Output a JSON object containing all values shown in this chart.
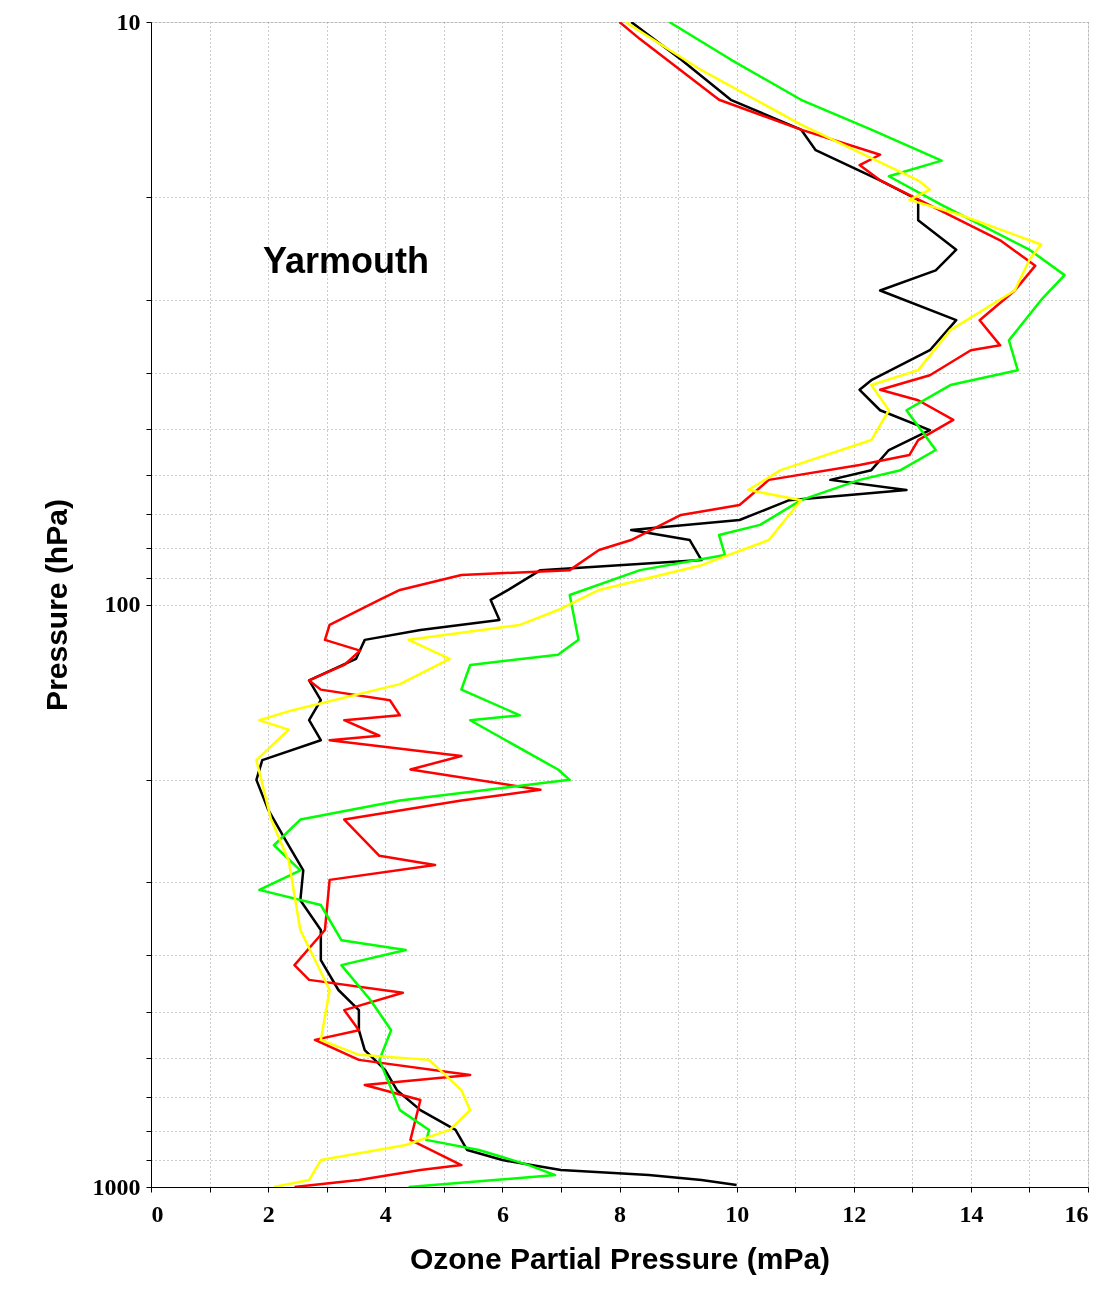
{
  "chart_data": {
    "type": "line",
    "xlabel": "Ozone Partial Pressure (mPa)",
    "ylabel": "Pressure (hPa)",
    "log": "y",
    "grid": true,
    "annotations": [
      "Yarmouth"
    ],
    "xlim": [
      0,
      16
    ],
    "xticks": [
      0,
      {
        "value": 1,
        "label": null
      },
      2,
      {
        "value": 3,
        "label": null
      },
      4,
      {
        "value": 5,
        "label": null
      },
      6,
      {
        "value": 7,
        "label": null
      },
      8,
      {
        "value": 9,
        "label": null
      },
      10,
      {
        "value": 11,
        "label": null
      },
      12,
      {
        "value": 13,
        "label": null
      },
      14,
      {
        "value": 15,
        "label": null
      },
      16
    ],
    "ylim": [
      1000,
      10
    ],
    "yticks": [
      10,
      {
        "value": 20,
        "label": null
      },
      {
        "value": 30,
        "label": null
      },
      {
        "value": 40,
        "label": null
      },
      {
        "value": 50,
        "label": null
      },
      {
        "value": 60,
        "label": null
      },
      {
        "value": 70,
        "label": null
      },
      {
        "value": 80,
        "label": null
      },
      {
        "value": 90,
        "label": null
      },
      100,
      {
        "value": 200,
        "label": null
      },
      {
        "value": 300,
        "label": null
      },
      {
        "value": 400,
        "label": null
      },
      {
        "value": 500,
        "label": null
      },
      {
        "value": 600,
        "label": null
      },
      {
        "value": 700,
        "label": null
      },
      {
        "value": 800,
        "label": null
      },
      {
        "value": 900,
        "label": null
      },
      1000
    ],
    "series": [
      {
        "color": "#000000",
        "x": [
          8.2,
          9.05,
          9.9,
          11.1,
          11.35,
          12.45,
          13.1,
          13.1,
          13.75,
          13.4,
          12.45,
          13.75,
          13.3,
          12.3,
          12.1,
          12.45,
          13.3,
          12.6,
          12.3,
          11.6,
          12.9,
          10.9,
          10.05,
          8.2,
          9.2,
          9.4,
          6.65,
          6.1,
          5.8,
          5.95,
          4.6,
          3.65,
          3.5,
          2.7,
          2.9,
          2.7,
          2.9,
          1.9,
          1.8,
          2.0,
          2.3,
          2.6,
          2.55,
          2.9,
          2.9,
          3.2,
          3.55,
          3.55,
          3.65,
          4.0,
          4.2,
          4.6,
          5.2,
          5.4,
          6.0,
          7.0,
          8.5,
          9.4,
          10.0
        ],
        "values": [
          10,
          11.6,
          13.6,
          15.3,
          16.6,
          18.7,
          20.2,
          21.9,
          24.6,
          26.7,
          28.9,
          32.5,
          36.6,
          41.2,
          42.8,
          46.4,
          50.2,
          54.3,
          58.8,
          61.1,
          63.6,
          66.2,
          71.6,
          74.5,
          77.5,
          83.9,
          87.3,
          94.4,
          98.2,
          106.3,
          110.6,
          115,
          124,
          135,
          146,
          158,
          171,
          185,
          200,
          225,
          254,
          286,
          322,
          362,
          408,
          459,
          497,
          538,
          582,
          630,
          682,
          738,
          798,
          864,
          899,
          935,
          954,
          973,
          992
        ]
      },
      {
        "color": "#ff0000",
        "x": [
          8.0,
          8.35,
          9.7,
          11.1,
          12.45,
          12.1,
          12.45,
          13.45,
          14.5,
          15.1,
          14.75,
          14.15,
          14.5,
          14.0,
          13.3,
          12.45,
          13.1,
          13.7,
          13.1,
          12.95,
          12.1,
          10.55,
          10.05,
          9.05,
          8.2,
          7.65,
          7.15,
          5.3,
          4.25,
          3.9,
          3.05,
          2.97,
          3.57,
          3.3,
          2.7,
          2.9,
          4.08,
          4.25,
          3.3,
          3.9,
          3.05,
          5.3,
          4.43,
          6.65,
          5.3,
          3.3,
          3.9,
          4.85,
          3.05,
          2.97,
          2.45,
          2.7,
          4.3,
          3.3,
          3.55,
          2.8,
          3.55,
          5.45,
          3.65,
          4.6,
          4.43,
          5.3,
          4.6,
          3.55,
          2.45
        ],
        "values": [
          10,
          10.7,
          13.6,
          15.3,
          16.9,
          17.6,
          18.7,
          21.0,
          23.7,
          26.2,
          28.9,
          32.5,
          35.9,
          36.6,
          40.4,
          42.8,
          44.6,
          48.2,
          52.2,
          55.4,
          57.6,
          61.1,
          67.5,
          70.2,
          77.5,
          80.6,
          87.3,
          89.0,
          94.4,
          98.2,
          108.4,
          115,
          120,
          127,
          135,
          140,
          146,
          155,
          158,
          168,
          171,
          182,
          192,
          208,
          217,
          234,
          270,
          280,
          297,
          362,
          416,
          441,
          464,
          497,
          538,
          559,
          605,
          642,
          668,
          709,
          830,
          917,
          935,
          973,
          1000
        ]
      },
      {
        "color": "#00ff00",
        "x": [
          8.85,
          9.9,
          11.1,
          12.3,
          13.5,
          12.6,
          13.5,
          15.0,
          15.6,
          15.2,
          14.65,
          14.8,
          13.65,
          12.9,
          13.4,
          12.8,
          12.1,
          11.1,
          10.4,
          9.7,
          9.8,
          8.35,
          7.15,
          7.3,
          6.95,
          5.45,
          5.3,
          6.3,
          5.45,
          6.95,
          7.15,
          4.25,
          2.55,
          2.1,
          2.55,
          1.85,
          2.9,
          3.25,
          4.35,
          3.25,
          3.75,
          4.1,
          3.9,
          4.25,
          4.75,
          4.7,
          5.6,
          6.45,
          6.9,
          4.4
        ],
        "values": [
          10,
          11.6,
          13.6,
          15.3,
          17.3,
          18.4,
          20.6,
          24.6,
          27.2,
          30.0,
          35.2,
          39.6,
          42.0,
          46.4,
          54.3,
          58.8,
          61.1,
          66.2,
          73.0,
          76.0,
          82.2,
          87.3,
          96.3,
          115,
          122,
          127,
          140,
          155,
          158,
          192,
          200,
          217,
          234,
          259,
          286,
          309,
          328,
          377,
          392,
          416,
          478,
          538,
          605,
          738,
          798,
          830,
          864,
          917,
          954,
          1000
        ]
      },
      {
        "color": "#ffff00",
        "x": [
          8.1,
          9.4,
          11.1,
          13.1,
          13.3,
          12.95,
          13.8,
          15.2,
          15.0,
          14.75,
          13.65,
          13.1,
          12.3,
          12.6,
          12.3,
          10.75,
          10.2,
          11.1,
          10.55,
          9.4,
          7.65,
          6.95,
          6.3,
          4.4,
          5.1,
          4.25,
          2.4,
          1.85,
          2.35,
          1.8,
          2.05,
          2.35,
          2.55,
          3.05,
          2.9,
          3.55,
          4.75,
          5.3,
          5.45,
          5.1,
          4.35,
          2.9,
          2.7,
          2.1
        ],
        "values": [
          10,
          12.1,
          15.0,
          18.7,
          19.4,
          20.2,
          21.4,
          24.1,
          25.6,
          28.9,
          33.8,
          39.6,
          42.0,
          46.4,
          52.2,
          58.8,
          63.6,
          66.2,
          77.5,
          85.6,
          94.4,
          102.2,
          108.4,
          115,
          124,
          137,
          152,
          158,
          164,
          185,
          234,
          275,
          362,
          459,
          559,
          593,
          605,
          682,
          738,
          798,
          847,
          899,
          973,
          1000
        ]
      }
    ]
  }
}
